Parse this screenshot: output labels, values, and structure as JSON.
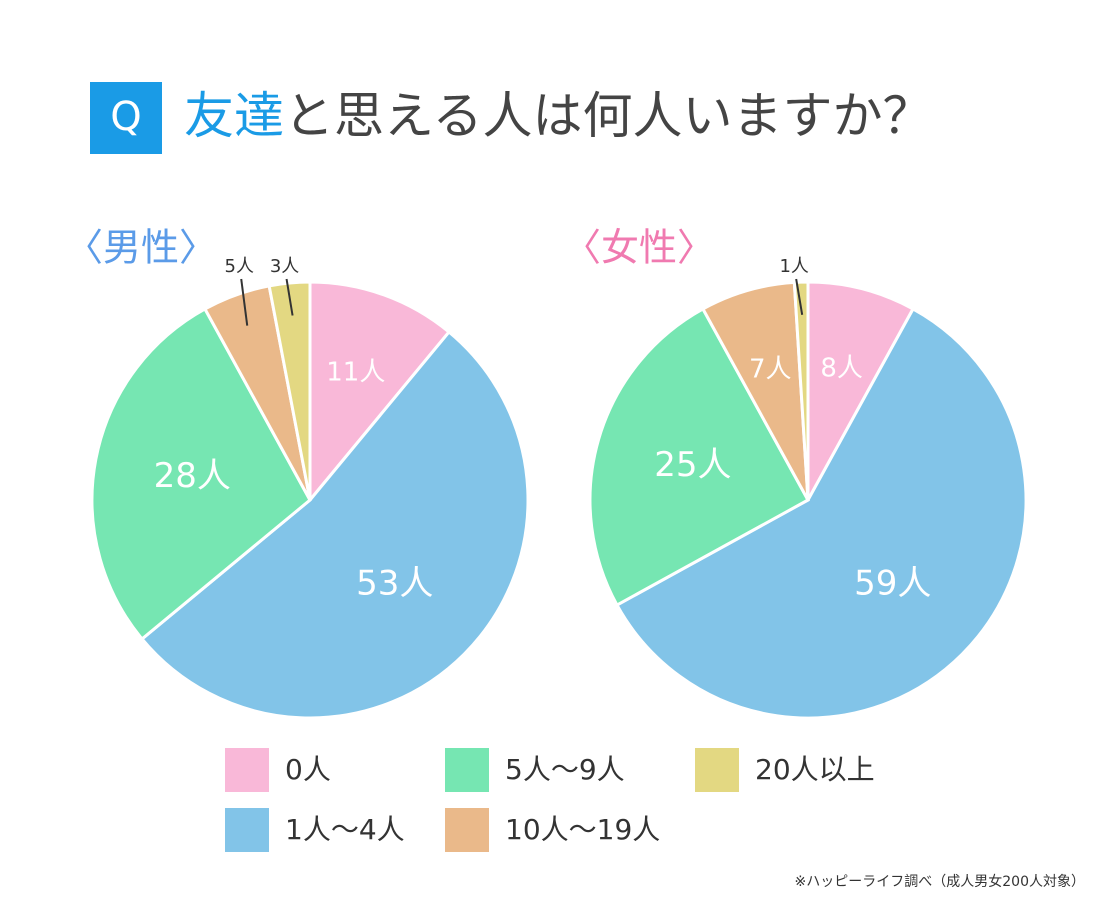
{
  "question": {
    "mark": "Q",
    "highlight": "友達",
    "text": "と思える人は何人いますか？"
  },
  "chart_data": [
    {
      "type": "pie",
      "title": "〈男性〉",
      "title_color": "#5b9be8",
      "categories": [
        "0人",
        "1人〜4人",
        "5人〜9人",
        "10人〜19人",
        "20人以上"
      ],
      "colors": [
        "#f9b8d8",
        "#82c4e8",
        "#76e6b2",
        "#eab98a",
        "#e3d882"
      ],
      "values": [
        11,
        53,
        28,
        5,
        3
      ],
      "value_labels": [
        "11人",
        "53人",
        "28人",
        "5人",
        "3人"
      ]
    },
    {
      "type": "pie",
      "title": "〈女性〉",
      "title_color": "#f07ab0",
      "categories": [
        "0人",
        "1人〜4人",
        "5人〜9人",
        "10人〜19人",
        "20人以上"
      ],
      "colors": [
        "#f9b8d8",
        "#82c4e8",
        "#76e6b2",
        "#eab98a",
        "#e3d882"
      ],
      "values": [
        8,
        59,
        25,
        7,
        1
      ],
      "value_labels": [
        "8人",
        "59人",
        "25人",
        "7人",
        "1人"
      ]
    }
  ],
  "footnote": "※ハッピーライフ調べ（成人男女200人対象）"
}
